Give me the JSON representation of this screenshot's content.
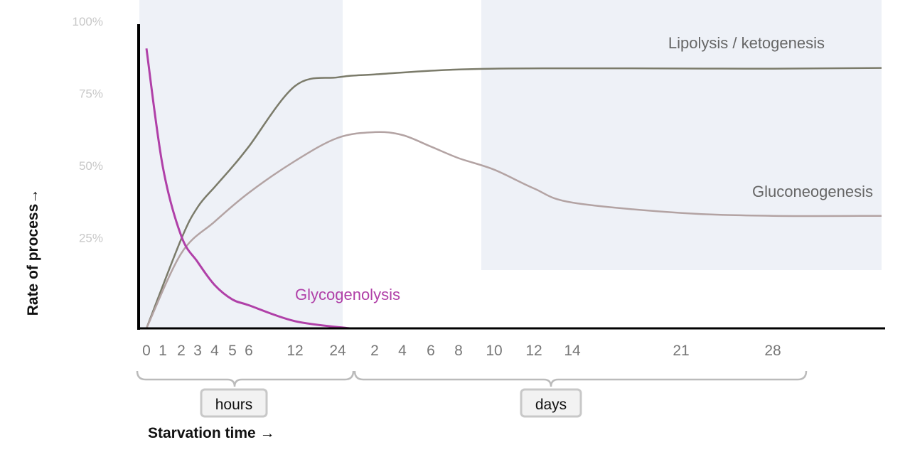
{
  "chart_data": {
    "type": "line",
    "title": "",
    "xlabel": "Starvation time →",
    "ylabel": "Rate of process→",
    "ylim": [
      0,
      100
    ],
    "y_ticks": [
      "25%",
      "50%",
      "75%",
      "100%"
    ],
    "y_tick_values": [
      25,
      50,
      75,
      100
    ],
    "x_ticks": [
      "0",
      "1",
      "2",
      "3",
      "4",
      "5",
      "6",
      "12",
      "24",
      "2",
      "4",
      "6",
      "8",
      "10",
      "12",
      "14",
      "21",
      "28"
    ],
    "x_tick_ids": [
      "0h",
      "1h",
      "2h",
      "3h",
      "4h",
      "5h",
      "6h",
      "12h",
      "24h",
      "2d",
      "4d",
      "6d",
      "8d",
      "10d",
      "12d",
      "14d",
      "21d",
      "28d"
    ],
    "x_scale": "non-linear (hours then days)",
    "x_groups": [
      {
        "label": "hours",
        "from": "0h",
        "to": "24h"
      },
      {
        "label": "days",
        "from": "2d",
        "to": "28d"
      }
    ],
    "shaded_bands": [
      {
        "from": "0h",
        "to": "24h",
        "color": "#eef1f7"
      },
      {
        "from": "10d",
        "to": "beyond 28d",
        "color": "#eef1f7"
      }
    ],
    "grid": false,
    "series": [
      {
        "name": "Lipolysis / ketogenesis",
        "color": "#7b7b6a",
        "points": [
          [
            "0h",
            0
          ],
          [
            "2h",
            31
          ],
          [
            "3h",
            42
          ],
          [
            "4h",
            49
          ],
          [
            "5h",
            56
          ],
          [
            "6h",
            63
          ],
          [
            "12h",
            84
          ],
          [
            "24h",
            87
          ],
          [
            "2d",
            88
          ],
          [
            "10d",
            90
          ],
          [
            "28d",
            90
          ]
        ]
      },
      {
        "name": "Gluconeogenesis",
        "color": "#b3a3a3",
        "points": [
          [
            "0h",
            0
          ],
          [
            "2h",
            26
          ],
          [
            "4h",
            37
          ],
          [
            "6h",
            47
          ],
          [
            "12h",
            58
          ],
          [
            "24h",
            66
          ],
          [
            "2d",
            68
          ],
          [
            "4d",
            67
          ],
          [
            "6d",
            63
          ],
          [
            "8d",
            59
          ],
          [
            "10d",
            55
          ],
          [
            "12d",
            48.5
          ],
          [
            "14d",
            43.6
          ],
          [
            "21d",
            40
          ],
          [
            "28d",
            39
          ]
        ]
      },
      {
        "name": "Glycogenolysis",
        "color": "#b040a8",
        "points": [
          [
            "0h",
            97
          ],
          [
            "1h",
            56
          ],
          [
            "2h",
            32
          ],
          [
            "3h",
            23
          ],
          [
            "4h",
            15
          ],
          [
            "5h",
            10
          ],
          [
            "6h",
            8
          ],
          [
            "12h",
            2.5
          ],
          [
            "24h",
            0
          ]
        ]
      }
    ]
  }
}
